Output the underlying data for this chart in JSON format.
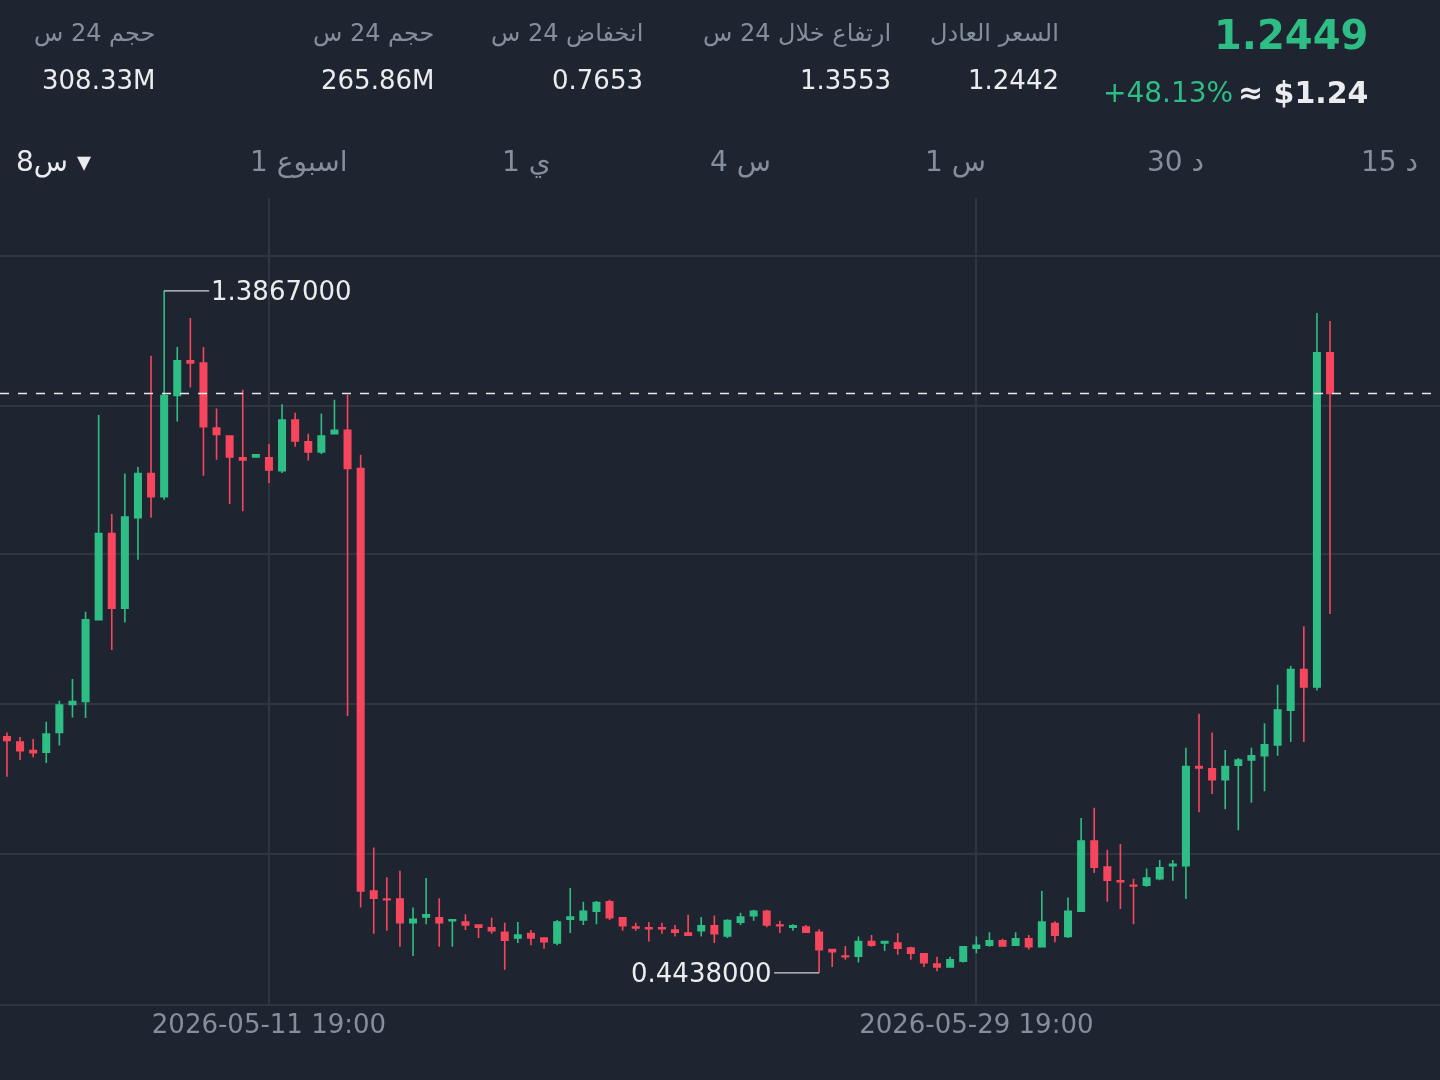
{
  "chart_data": {
    "type": "candlestick",
    "x": [
      "2026-05-05T03:00",
      "2026-05-05T11:00",
      "2026-05-05T19:00",
      "2026-05-06T03:00",
      "2026-05-06T11:00",
      "2026-05-06T19:00",
      "2026-05-07T03:00",
      "2026-05-07T11:00",
      "2026-05-07T19:00",
      "2026-05-08T03:00",
      "2026-05-08T11:00",
      "2026-05-08T19:00",
      "2026-05-09T03:00",
      "2026-05-09T11:00",
      "2026-05-09T19:00",
      "2026-05-10T03:00",
      "2026-05-10T11:00",
      "2026-05-10T19:00",
      "2026-05-11T03:00",
      "2026-05-11T11:00",
      "2026-05-11T19:00",
      "2026-05-12T03:00",
      "2026-05-12T11:00",
      "2026-05-12T19:00",
      "2026-05-13T03:00",
      "2026-05-13T11:00",
      "2026-05-13T19:00",
      "2026-05-14T03:00",
      "2026-05-14T11:00",
      "2026-05-14T19:00",
      "2026-05-15T03:00",
      "2026-05-15T11:00",
      "2026-05-15T19:00",
      "2026-05-16T03:00",
      "2026-05-16T11:00",
      "2026-05-16T19:00",
      "2026-05-17T03:00",
      "2026-05-17T11:00",
      "2026-05-17T19:00",
      "2026-05-18T03:00",
      "2026-05-18T11:00",
      "2026-05-18T19:00",
      "2026-05-19T03:00",
      "2026-05-19T11:00",
      "2026-05-19T19:00",
      "2026-05-20T03:00",
      "2026-05-20T11:00",
      "2026-05-20T19:00",
      "2026-05-21T03:00",
      "2026-05-21T11:00",
      "2026-05-21T19:00",
      "2026-05-22T03:00",
      "2026-05-22T11:00",
      "2026-05-22T19:00",
      "2026-05-23T03:00",
      "2026-05-23T11:00",
      "2026-05-23T19:00",
      "2026-05-24T03:00",
      "2026-05-24T11:00",
      "2026-05-24T19:00",
      "2026-05-25T03:00",
      "2026-05-25T11:00",
      "2026-05-25T19:00",
      "2026-05-26T03:00",
      "2026-05-26T11:00",
      "2026-05-26T19:00",
      "2026-05-27T03:00",
      "2026-05-27T11:00",
      "2026-05-27T19:00",
      "2026-05-28T03:00",
      "2026-05-28T11:00",
      "2026-05-28T19:00",
      "2026-05-29T03:00",
      "2026-05-29T11:00",
      "2026-05-29T19:00",
      "2026-05-30T03:00",
      "2026-05-30T11:00",
      "2026-05-30T19:00",
      "2026-05-31T03:00",
      "2026-05-31T11:00",
      "2026-05-31T19:00",
      "2026-06-01T03:00",
      "2026-06-01T11:00",
      "2026-06-01T19:00",
      "2026-06-02T03:00",
      "2026-06-02T11:00",
      "2026-06-02T19:00",
      "2026-06-03T03:00",
      "2026-06-03T11:00",
      "2026-06-03T19:00",
      "2026-06-04T03:00",
      "2026-06-04T11:00",
      "2026-06-04T19:00",
      "2026-06-05T03:00",
      "2026-06-05T11:00",
      "2026-06-05T19:00",
      "2026-06-06T03:00",
      "2026-06-06T11:00",
      "2026-06-06T19:00",
      "2026-06-07T03:00",
      "2026-06-07T11:00",
      "2026-06-07T19:00"
    ],
    "ohlc": [
      [
        0.77,
        0.776,
        0.715,
        0.765
      ],
      [
        0.763,
        0.77,
        0.738,
        0.751
      ],
      [
        0.751,
        0.767,
        0.742,
        0.748
      ],
      [
        0.749,
        0.791,
        0.734,
        0.774
      ],
      [
        0.776,
        0.82,
        0.758,
        0.814
      ],
      [
        0.815,
        0.85,
        0.797,
        0.819
      ],
      [
        0.819,
        0.943,
        0.796,
        0.932
      ],
      [
        0.932,
        1.215,
        0.932,
        1.051
      ],
      [
        1.051,
        1.078,
        0.89,
        0.948
      ],
      [
        0.948,
        1.134,
        0.928,
        1.074
      ],
      [
        1.073,
        1.143,
        1.015,
        1.134
      ],
      [
        1.134,
        1.297,
        1.073,
        1.102
      ],
      [
        1.102,
        1.3867,
        1.098,
        1.242
      ],
      [
        1.242,
        1.309,
        1.206,
        1.29
      ],
      [
        1.29,
        1.349,
        1.253,
        1.287
      ],
      [
        1.287,
        1.309,
        1.131,
        1.199
      ],
      [
        1.197,
        1.224,
        1.153,
        1.188
      ],
      [
        1.186,
        1.186,
        1.092,
        1.157
      ],
      [
        1.156,
        1.25,
        1.082,
        1.153
      ],
      [
        1.157,
        1.16,
        1.156,
        1.16
      ],
      [
        1.156,
        1.175,
        1.121,
        1.139
      ],
      [
        1.138,
        1.23,
        1.135,
        1.208
      ],
      [
        1.208,
        1.218,
        1.171,
        1.179
      ],
      [
        1.178,
        1.189,
        1.152,
        1.164
      ],
      [
        1.164,
        1.217,
        1.161,
        1.186
      ],
      [
        1.189,
        1.236,
        1.189,
        1.194
      ],
      [
        1.194,
        1.243,
        0.799,
        1.141
      ],
      [
        1.141,
        1.16,
        0.534,
        0.557
      ],
      [
        0.557,
        0.617,
        0.498,
        0.547
      ],
      [
        0.546,
        0.576,
        0.502,
        0.545
      ],
      [
        0.546,
        0.585,
        0.48,
        0.513
      ],
      [
        0.513,
        0.534,
        0.467,
        0.518
      ],
      [
        0.521,
        0.575,
        0.511,
        0.524
      ],
      [
        0.52,
        0.547,
        0.48,
        0.513
      ],
      [
        0.516,
        0.517,
        0.48,
        0.517
      ],
      [
        0.514,
        0.525,
        0.503,
        0.51
      ],
      [
        0.51,
        0.51,
        0.492,
        0.507
      ],
      [
        0.506,
        0.52,
        0.498,
        0.502
      ],
      [
        0.5,
        0.513,
        0.448,
        0.489
      ],
      [
        0.492,
        0.514,
        0.485,
        0.496
      ],
      [
        0.498,
        0.503,
        0.482,
        0.492
      ],
      [
        0.492,
        0.492,
        0.477,
        0.487
      ],
      [
        0.485,
        0.517,
        0.482,
        0.514
      ],
      [
        0.518,
        0.561,
        0.499,
        0.521
      ],
      [
        0.517,
        0.542,
        0.51,
        0.529
      ],
      [
        0.529,
        0.543,
        0.511,
        0.541
      ],
      [
        0.542,
        0.545,
        0.517,
        0.52
      ],
      [
        0.52,
        0.52,
        0.502,
        0.509
      ],
      [
        0.507,
        0.513,
        0.502,
        0.506
      ],
      [
        0.506,
        0.514,
        0.487,
        0.505
      ],
      [
        0.506,
        0.513,
        0.498,
        0.505
      ],
      [
        0.503,
        0.51,
        0.494,
        0.5
      ],
      [
        0.499,
        0.524,
        0.496,
        0.496
      ],
      [
        0.502,
        0.521,
        0.494,
        0.509
      ],
      [
        0.509,
        0.523,
        0.485,
        0.498
      ],
      [
        0.495,
        0.518,
        0.492,
        0.516
      ],
      [
        0.514,
        0.527,
        0.51,
        0.521
      ],
      [
        0.523,
        0.531,
        0.516,
        0.529
      ],
      [
        0.529,
        0.531,
        0.507,
        0.51
      ],
      [
        0.51,
        0.516,
        0.499,
        0.509
      ],
      [
        0.507,
        0.511,
        0.502,
        0.509
      ],
      [
        0.507,
        0.51,
        0.499,
        0.5
      ],
      [
        0.5,
        0.504,
        0.4438,
        0.476
      ],
      [
        0.476,
        0.477,
        0.452,
        0.473
      ],
      [
        0.467,
        0.481,
        0.462,
        0.466
      ],
      [
        0.467,
        0.494,
        0.458,
        0.487
      ],
      [
        0.487,
        0.496,
        0.48,
        0.482
      ],
      [
        0.485,
        0.488,
        0.474,
        0.487
      ],
      [
        0.485,
        0.499,
        0.469,
        0.478
      ],
      [
        0.478,
        0.48,
        0.462,
        0.471
      ],
      [
        0.47,
        0.471,
        0.452,
        0.458
      ],
      [
        0.456,
        0.466,
        0.446,
        0.452
      ],
      [
        0.452,
        0.466,
        0.451,
        0.462
      ],
      [
        0.46,
        0.481,
        0.458,
        0.48
      ],
      [
        0.478,
        0.494,
        0.471,
        0.482
      ],
      [
        0.482,
        0.5,
        0.48,
        0.488
      ],
      [
        0.488,
        0.491,
        0.48,
        0.481
      ],
      [
        0.482,
        0.5,
        0.481,
        0.491
      ],
      [
        0.491,
        0.496,
        0.476,
        0.48
      ],
      [
        0.48,
        0.557,
        0.48,
        0.514
      ],
      [
        0.512,
        0.515,
        0.486,
        0.496
      ],
      [
        0.494,
        0.548,
        0.492,
        0.529
      ],
      [
        0.529,
        0.658,
        0.529,
        0.626
      ],
      [
        0.626,
        0.672,
        0.582,
        0.59
      ],
      [
        0.59,
        0.614,
        0.542,
        0.572
      ],
      [
        0.571,
        0.622,
        0.532,
        0.57
      ],
      [
        0.565,
        0.574,
        0.511,
        0.564
      ],
      [
        0.565,
        0.588,
        0.563,
        0.575
      ],
      [
        0.574,
        0.6,
        0.572,
        0.589
      ],
      [
        0.592,
        0.6,
        0.571,
        0.594
      ],
      [
        0.592,
        0.755,
        0.546,
        0.729
      ],
      [
        0.729,
        0.802,
        0.666,
        0.727
      ],
      [
        0.726,
        0.776,
        0.691,
        0.711
      ],
      [
        0.711,
        0.752,
        0.67,
        0.729
      ],
      [
        0.731,
        0.741,
        0.641,
        0.738
      ],
      [
        0.738,
        0.755,
        0.679,
        0.744
      ],
      [
        0.744,
        0.789,
        0.695,
        0.759
      ],
      [
        0.759,
        0.842,
        0.744,
        0.807
      ],
      [
        0.807,
        0.868,
        0.763,
        0.863
      ],
      [
        0.863,
        0.923,
        0.763,
        0.839
      ],
      [
        0.839,
        1.356,
        0.834,
        1.301
      ],
      [
        1.301,
        1.345,
        0.94,
        1.2449
      ]
    ],
    "xlim": [
      "2026-05-04T22:45",
      "2026-06-10T14:10"
    ],
    "xticks": [
      {
        "value": "2026-05-11T19:00",
        "label": "2026-05-11 19:00"
      },
      {
        "value": "2026-05-29T19:00",
        "label": "2026-05-29 19:00"
      }
    ],
    "ylim": [
      0.398,
      1.515
    ],
    "yticks": [
      {
        "value": 0.4,
        "label": null
      },
      {
        "value": 0.608,
        "label": null
      },
      {
        "value": 0.815,
        "label": null
      },
      {
        "value": 1.023,
        "label": null
      },
      {
        "value": 1.228,
        "label": null
      },
      {
        "value": 1.435,
        "label": null
      }
    ],
    "tick_labels": "x",
    "grid": true,
    "ref_lines": [
      {
        "axis": "y",
        "value": 1.2449,
        "line_style": "dashed",
        "color": "#e6e8ea"
      }
    ],
    "annotations": [
      "1.2449",
      "+48.13%",
      "≈ $1.24",
      "السعر العادل",
      "1.2442",
      "ارتفاع خلال 24 س",
      "1.3553",
      "انخفاض 24 س",
      "0.7653",
      "حجم 24 س",
      "265.86M",
      "حجم 24 س",
      "308.33M",
      "15 د",
      "30 د",
      "1 س",
      "4 س",
      "1 ي",
      "1 اسبوع",
      "8س ▾",
      {
        "text": "1.3867000",
        "x": "2026-05-09T03:00",
        "y": 1.3867
      },
      {
        "text": "0.4438000",
        "x": "2026-05-25T19:00",
        "y": 0.4438
      }
    ]
  }
}
